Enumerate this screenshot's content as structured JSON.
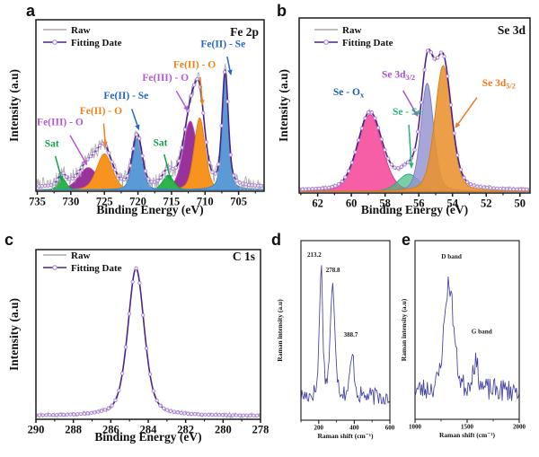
{
  "figure": {
    "background": "#ffffff",
    "description": "Five-panel spectroscopy figure: XPS Fe 2p, Se 3d, C 1s and two Raman spectra"
  },
  "chart_data": [
    {
      "id": "a",
      "panel_letter": "a",
      "type": "area",
      "corner_title": "Fe 2p",
      "xlabel": "Binding Energy (eV)",
      "ylabel": "Intensity (a.u)",
      "xlim": [
        735.2,
        701.2
      ],
      "x_ticks": [
        735,
        730,
        725,
        720,
        715,
        710,
        705
      ],
      "x_minor_step": 2.5,
      "legend": [
        {
          "label": "Raw",
          "color": "#a9a9a9",
          "marker": false
        },
        {
          "label": "Fitting Date",
          "color": "#4b2491",
          "marker": true
        }
      ],
      "fit_color": "#4b2491",
      "marker_color": "#a97fd1",
      "raw_color": "#a9a9a9",
      "baseline": 0.025,
      "raw_noise": 0.05,
      "seed": 7,
      "samples": 300,
      "peaks": [
        {
          "label": "Sat",
          "center": 731.3,
          "amplitude": 0.07,
          "hwhm": 0.7,
          "shape_mix": 0.3,
          "fill": "#2eb44d",
          "stroke": "#17a23b",
          "opacity": 1
        },
        {
          "label": "Fe(III) - O",
          "center": 727.4,
          "amplitude": 0.13,
          "hwhm": 1.7,
          "shape_mix": 0.3,
          "fill": "#98339c",
          "stroke": "#cb3fbe",
          "opacity": 1
        },
        {
          "label": "Fe(II) - O",
          "center": 725.0,
          "amplitude": 0.21,
          "hwhm": 1.35,
          "shape_mix": 0.3,
          "fill": "#f7941f",
          "stroke": "#e5800a",
          "opacity": 1
        },
        {
          "label": "Fe(II) - Se",
          "center": 720.1,
          "amplitude": 0.3,
          "hwhm": 0.85,
          "shape_mix": 0.3,
          "fill": "#5b9bd5",
          "stroke": "#3c82c4",
          "opacity": 1
        },
        {
          "label": "Sat",
          "center": 715.5,
          "amplitude": 0.085,
          "hwhm": 0.95,
          "shape_mix": 0.3,
          "fill": "#2eb44d",
          "stroke": "#17a23b",
          "opacity": 1
        },
        {
          "label": "Fe(III) - O",
          "center": 712.2,
          "amplitude": 0.4,
          "hwhm": 1.25,
          "shape_mix": 0.3,
          "fill": "#98339c",
          "stroke": "#cb3fbe",
          "opacity": 1
        },
        {
          "label": "Fe(II) - O",
          "center": 710.8,
          "amplitude": 0.42,
          "hwhm": 0.95,
          "shape_mix": 0.3,
          "fill": "#f7941f",
          "stroke": "#e5800a",
          "opacity": 1
        },
        {
          "label": "Fe(II) - Se",
          "center": 707.0,
          "amplitude": 0.67,
          "hwhm": 0.55,
          "shape_mix": 0.45,
          "fill": "#5b9bd5",
          "stroke": "#3c82c4",
          "opacity": 1
        }
      ],
      "draw_order": [
        1,
        5,
        2,
        6,
        0,
        4,
        3,
        7
      ],
      "annotations": [
        {
          "text": "Sat",
          "color": "#12a14b",
          "fx": 0.07,
          "fy": 0.26,
          "arrow": [
            0.085,
            0.205,
            0.116,
            0.055
          ]
        },
        {
          "text": "Fe(III) - O",
          "color": "#b559d4",
          "fx": 0.106,
          "fy": 0.385,
          "arrow": [
            0.15,
            0.325,
            0.225,
            0.15
          ]
        },
        {
          "text": "Fe(II) - O",
          "color": "#f0821c",
          "fx": 0.285,
          "fy": 0.45,
          "arrow": [
            0.297,
            0.395,
            0.305,
            0.255
          ]
        },
        {
          "text": "Fe(II) - Se",
          "color": "#2565cc",
          "fx": 0.395,
          "fy": 0.54,
          "arrow": [
            0.42,
            0.48,
            0.452,
            0.355
          ]
        },
        {
          "text": "Sat",
          "color": "#12a14b",
          "fx": 0.545,
          "fy": 0.265,
          "arrow": [
            0.562,
            0.215,
            0.592,
            0.06
          ]
        },
        {
          "text": "Fe(III) - O",
          "color": "#b559d4",
          "fx": 0.568,
          "fy": 0.645,
          "arrow": [
            0.615,
            0.585,
            0.668,
            0.465
          ]
        },
        {
          "text": "Fe(II) - O",
          "color": "#f0821c",
          "fx": 0.695,
          "fy": 0.72,
          "arrow": [
            0.72,
            0.665,
            0.73,
            0.5
          ]
        },
        {
          "text": "Fe(II) - Se",
          "color": "#2565cc",
          "fx": 0.82,
          "fy": 0.84,
          "arrow": [
            0.838,
            0.785,
            0.855,
            0.675
          ]
        }
      ]
    },
    {
      "id": "b",
      "panel_letter": "b",
      "type": "area",
      "corner_title": "Se 3d",
      "xlabel": "Binding Energy (eV)",
      "ylabel": "Intensity (a.u)",
      "xlim": [
        63.1,
        49.4
      ],
      "x_ticks": [
        62,
        60,
        58,
        56,
        54,
        52,
        50
      ],
      "x_minor_step": 1,
      "legend": [
        {
          "label": "Raw",
          "color": "#a9a9a9",
          "marker": false
        },
        {
          "label": "Fitting Date",
          "color": "#4b2491",
          "marker": true
        }
      ],
      "fit_color": "#4b2491",
      "marker_color": "#a97fd1",
      "raw_color": "#a9a9a9",
      "baseline": 0.015,
      "raw_noise": 0.015,
      "seed": 11,
      "samples": 280,
      "peaks": [
        {
          "label": "Se - Ox",
          "center": 58.9,
          "amplitude": 0.44,
          "hwhm": 0.85,
          "shape_mix": 0.25,
          "fill": "#f5509e",
          "stroke": "#e2308d",
          "opacity": 0.92
        },
        {
          "label": "Se - Se",
          "center": 56.6,
          "amplitude": 0.1,
          "hwhm": 0.75,
          "shape_mix": 0.3,
          "fill": "#41ba81",
          "stroke": "#27a86d",
          "opacity": 0.7
        },
        {
          "label": "Se 3d3/2",
          "center": 55.5,
          "amplitude": 0.62,
          "hwhm": 0.45,
          "shape_mix": 0.3,
          "fill": "#9393cf",
          "stroke": "#7a7ac2",
          "opacity": 0.82
        },
        {
          "label": "Se 3d5/2",
          "center": 54.55,
          "amplitude": 0.72,
          "hwhm": 0.58,
          "shape_mix": 0.3,
          "fill": "#e9922e",
          "stroke": "#d77d12",
          "opacity": 0.88
        }
      ],
      "draw_order": [
        0,
        1,
        2,
        3
      ],
      "annotations": [
        {
          "text": "Se - O",
          "sub": "x",
          "color": "#1f5fae",
          "fx": 0.214,
          "fy": 0.56
        },
        {
          "text": "Se 3d",
          "sub": "3/2",
          "color": "#a653cf",
          "fx": 0.43,
          "fy": 0.66,
          "arrow": [
            0.45,
            0.585,
            0.515,
            0.435
          ]
        },
        {
          "text": "Se - Se",
          "color": "#2ab379",
          "fx": 0.468,
          "fy": 0.445,
          "arrow": [
            0.475,
            0.39,
            0.487,
            0.14
          ]
        },
        {
          "text": "Se 3d",
          "sub": "5/2",
          "color": "#f0791c",
          "fx": 0.865,
          "fy": 0.61,
          "arrow": [
            0.77,
            0.545,
            0.675,
            0.37
          ]
        }
      ]
    },
    {
      "id": "c",
      "panel_letter": "c",
      "type": "area",
      "corner_title": "C 1s",
      "xlabel": "Binding Energy (eV)",
      "ylabel": "Intensity (a.u)",
      "xlim": [
        290,
        278
      ],
      "x_ticks": [
        290,
        288,
        286,
        284,
        282,
        280,
        278
      ],
      "x_minor_step": 1,
      "legend": [
        {
          "label": "Raw",
          "color": "#a9a9a9",
          "marker": false
        },
        {
          "label": "Fitting Date",
          "color": "#4b2491",
          "marker": true
        }
      ],
      "fit_color": "#4b2491",
      "marker_color": "#a97fd1",
      "raw_color": "#a9a9a9",
      "baseline": 0.02,
      "raw_noise": 0.015,
      "seed": 13,
      "samples": 260,
      "peaks": [
        {
          "label": "C 1s",
          "center": 284.65,
          "amplitude": 0.87,
          "hwhm": 0.52,
          "shape_mix": 0.45,
          "fill": "none",
          "stroke": "none",
          "opacity": 0
        }
      ],
      "draw_order": [],
      "annotations": []
    },
    {
      "id": "d",
      "panel_letter": "d",
      "type": "line",
      "xlabel": "Raman shift (cm⁻¹)",
      "ylabel": "Raman intensity (a.u)",
      "xlim": [
        100,
        600
      ],
      "x_ticks": [
        200,
        400,
        600
      ],
      "x_minor_step": 100,
      "line_color": "#4140a3",
      "baseline": 0.13,
      "raw_noise": 0.05,
      "seed": 17,
      "samples": 95,
      "peaks": [
        {
          "label": "213.2",
          "center": 213.2,
          "amplitude": 0.72,
          "hwhm": 11,
          "shape_mix": 0.4
        },
        {
          "label": "278.8",
          "center": 278.8,
          "amplitude": 0.6,
          "hwhm": 16,
          "shape_mix": 0.4
        },
        {
          "label": "388.7",
          "center": 388.7,
          "amplitude": 0.22,
          "hwhm": 14,
          "shape_mix": 0.4
        }
      ],
      "annotations": [
        {
          "text": "213.2",
          "color": "#1a1a1a",
          "fx": 0.15,
          "fy": 0.91
        },
        {
          "text": "278.8",
          "color": "#1a1a1a",
          "fx": 0.36,
          "fy": 0.825
        },
        {
          "text": "388.7",
          "color": "#1a1a1a",
          "fx": 0.56,
          "fy": 0.465
        }
      ]
    },
    {
      "id": "e",
      "panel_letter": "e",
      "type": "line",
      "xlabel": "Raman shift (cm⁻¹)",
      "ylabel": "Raman intensity (a.u)",
      "xlim": [
        1000,
        2000
      ],
      "x_ticks": [
        1000,
        1500,
        2000
      ],
      "x_minor_step": 250,
      "line_color": "#4140a3",
      "baseline": 0.16,
      "raw_noise": 0.065,
      "seed": 23,
      "samples": 110,
      "peaks": [
        {
          "label": "D band",
          "center": 1325,
          "amplitude": 0.6,
          "hwhm": 55,
          "shape_mix": 0.3
        },
        {
          "label": "G band",
          "center": 1578,
          "amplitude": 0.15,
          "hwhm": 35,
          "shape_mix": 0.3
        }
      ],
      "annotations": [
        {
          "text": "D band",
          "color": "#1a1a1a",
          "fx": 0.35,
          "fy": 0.9
        },
        {
          "text": "G band",
          "color": "#1a1a1a",
          "fx": 0.64,
          "fy": 0.48
        }
      ]
    }
  ]
}
